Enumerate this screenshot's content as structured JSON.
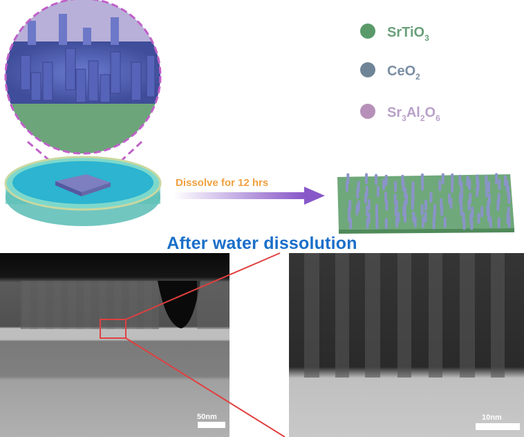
{
  "legend": [
    {
      "label": "SrTiO",
      "sub": "3",
      "color": "#5a9a6a",
      "text_color": "#6aa07a"
    },
    {
      "label": "CeO",
      "sub": "2",
      "color": "#6f8597",
      "text_color": "#7a8ea2"
    },
    {
      "label": "Sr3Al2O6",
      "parts": [
        "Sr",
        "3",
        "Al",
        "2",
        "O",
        "6"
      ],
      "color": "#b690b8",
      "text_color": "#b8a0c8"
    }
  ],
  "arrow_label": "Dissolve for 12 hrs",
  "section_title": "After water dissolution",
  "images": {
    "left_scale_bar": "50nm",
    "right_scale_bar": "10nm"
  },
  "colors": {
    "accent_title": "#1a6fc9",
    "arrow_text": "#f0a040",
    "zoom_lines": "#e04040",
    "dashed_circle": "#c060c8"
  }
}
